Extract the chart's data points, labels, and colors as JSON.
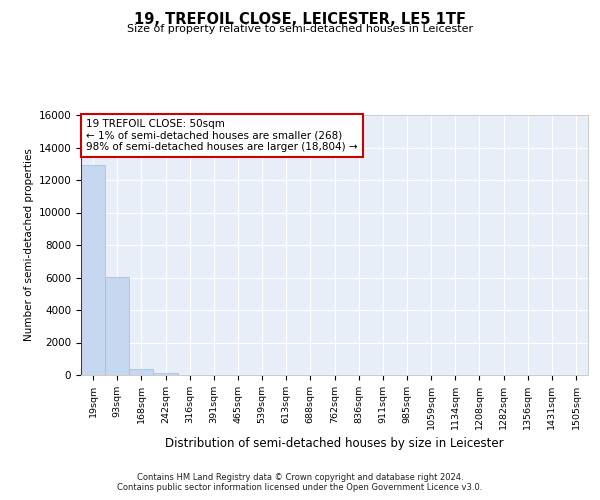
{
  "title": "19, TREFOIL CLOSE, LEICESTER, LE5 1TF",
  "subtitle": "Size of property relative to semi-detached houses in Leicester",
  "xlabel": "Distribution of semi-detached houses by size in Leicester",
  "ylabel": "Number of semi-detached properties",
  "bar_color": "#c5d8f0",
  "bar_edge_color": "#a0bcd8",
  "background_color": "#e8eef8",
  "grid_color": "#ffffff",
  "annotation_box_color": "#cc0000",
  "annotation_line1": "19 TREFOIL CLOSE: 50sqm",
  "annotation_line2": "← 1% of semi-detached houses are smaller (268)",
  "annotation_line3": "98% of semi-detached houses are larger (18,804) →",
  "property_line_color": "#cc0000",
  "categories": [
    "19sqm",
    "93sqm",
    "168sqm",
    "242sqm",
    "316sqm",
    "391sqm",
    "465sqm",
    "539sqm",
    "613sqm",
    "688sqm",
    "762sqm",
    "836sqm",
    "911sqm",
    "985sqm",
    "1059sqm",
    "1134sqm",
    "1208sqm",
    "1282sqm",
    "1356sqm",
    "1431sqm",
    "1505sqm"
  ],
  "values": [
    12900,
    6050,
    380,
    150,
    30,
    8,
    4,
    2,
    1,
    1,
    1,
    0,
    0,
    0,
    0,
    0,
    0,
    0,
    0,
    0,
    0
  ],
  "ylim": [
    0,
    16000
  ],
  "yticks": [
    0,
    2000,
    4000,
    6000,
    8000,
    10000,
    12000,
    14000,
    16000
  ],
  "footer_line1": "Contains HM Land Registry data © Crown copyright and database right 2024.",
  "footer_line2": "Contains public sector information licensed under the Open Government Licence v3.0."
}
